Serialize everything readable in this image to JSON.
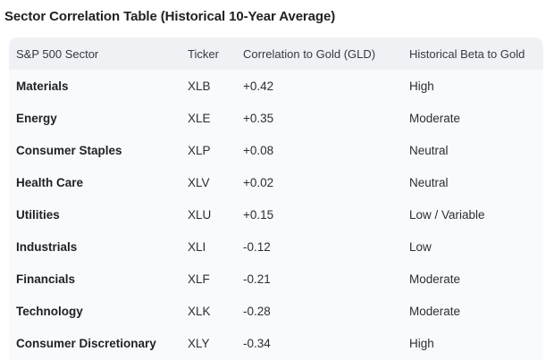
{
  "title": "Sector Correlation Table (Historical 10-Year Average)",
  "table": {
    "columns": [
      "S&P 500 Sector",
      "Ticker",
      "Correlation to Gold (GLD)",
      "Historical Beta to Gold"
    ],
    "rows": [
      {
        "sector": "Materials",
        "ticker": "XLB",
        "correlation": "+0.42",
        "beta": "High"
      },
      {
        "sector": "Energy",
        "ticker": "XLE",
        "correlation": "+0.35",
        "beta": "Moderate"
      },
      {
        "sector": "Consumer Staples",
        "ticker": "XLP",
        "correlation": "+0.08",
        "beta": "Neutral"
      },
      {
        "sector": "Health Care",
        "ticker": "XLV",
        "correlation": "+0.02",
        "beta": "Neutral"
      },
      {
        "sector": "Utilities",
        "ticker": "XLU",
        "correlation": "+0.15",
        "beta": "Low / Variable"
      },
      {
        "sector": "Industrials",
        "ticker": "XLI",
        "correlation": "-0.12",
        "beta": "Low"
      },
      {
        "sector": "Financials",
        "ticker": "XLF",
        "correlation": "-0.21",
        "beta": "Moderate"
      },
      {
        "sector": "Technology",
        "ticker": "XLK",
        "correlation": "-0.28",
        "beta": "Moderate"
      },
      {
        "sector": "Consumer Discretionary",
        "ticker": "XLY",
        "correlation": "-0.34",
        "beta": "High"
      }
    ]
  },
  "colors": {
    "header_bg": "#f0f1f5",
    "body_bg": "#f9fafb",
    "title_text": "#1f2124",
    "cell_text": "#2b2e33"
  }
}
